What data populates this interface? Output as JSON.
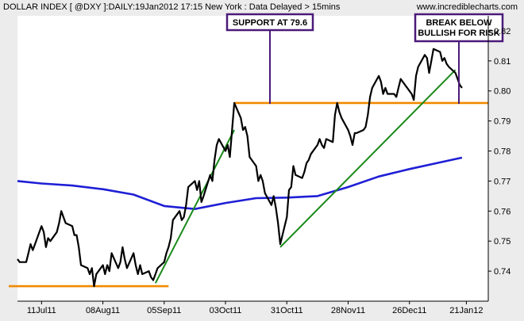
{
  "header": {
    "title": "DOLLAR INDEX [ @DXY ]:DAILY:19Jan2012 17:15 New York  : Data Delayed > 15mins",
    "site": "www.incrediblecharts.com"
  },
  "colors": {
    "background": "#ececec",
    "plot_background": "#ffffff",
    "price": "#000000",
    "moving_average": "#1f1fd6",
    "trendline": "#1a8a1a",
    "support": "#f08a00",
    "annotation_border": "#4b1a7a"
  },
  "annotations": [
    {
      "id": "support",
      "lines": [
        "SUPPORT AT 79.6"
      ]
    },
    {
      "id": "break",
      "lines": [
        "BREAK BELOW",
        "BULLISH FOR RISK"
      ]
    }
  ],
  "chart_data": {
    "type": "line",
    "title": "DOLLAR INDEX [ @DXY ]:DAILY:19Jan2012 17:15 New York  : Data Delayed > 15mins",
    "x_range": [
      "2011-06-30",
      "2012-01-31"
    ],
    "ylim": [
      0.73,
      0.825
    ],
    "y_axis_position": "right",
    "grid": false,
    "x_ticks": [
      {
        "date": "2011-07-11",
        "label": "11Jul11"
      },
      {
        "date": "2011-08-08",
        "label": "08Aug11"
      },
      {
        "date": "2011-09-05",
        "label": "05Sep11"
      },
      {
        "date": "2011-10-03",
        "label": "03Oct11"
      },
      {
        "date": "2011-10-31",
        "label": "31Oct11"
      },
      {
        "date": "2011-11-28",
        "label": "28Nov11"
      },
      {
        "date": "2011-12-26",
        "label": "26Dec11"
      },
      {
        "date": "2012-01-21",
        "label": "21Jan12"
      }
    ],
    "y_ticks": [
      0.74,
      0.75,
      0.76,
      0.77,
      0.78,
      0.79,
      0.8,
      0.81,
      0.82
    ],
    "series": [
      {
        "kind": "price",
        "points": [
          [
            "2011-06-30",
            0.744
          ],
          [
            "2011-07-01",
            0.743
          ],
          [
            "2011-07-04",
            0.743
          ],
          [
            "2011-07-05",
            0.746
          ],
          [
            "2011-07-06",
            0.749
          ],
          [
            "2011-07-07",
            0.747
          ],
          [
            "2011-07-08",
            0.749
          ],
          [
            "2011-07-11",
            0.755
          ],
          [
            "2011-07-12",
            0.753
          ],
          [
            "2011-07-13",
            0.748
          ],
          [
            "2011-07-14",
            0.751
          ],
          [
            "2011-07-15",
            0.75
          ],
          [
            "2011-07-18",
            0.753
          ],
          [
            "2011-07-19",
            0.756
          ],
          [
            "2011-07-20",
            0.76
          ],
          [
            "2011-07-21",
            0.758
          ],
          [
            "2011-07-22",
            0.756
          ],
          [
            "2011-07-25",
            0.755
          ],
          [
            "2011-07-26",
            0.752
          ],
          [
            "2011-07-27",
            0.752
          ],
          [
            "2011-07-28",
            0.748
          ],
          [
            "2011-07-29",
            0.742
          ],
          [
            "2011-08-01",
            0.741
          ],
          [
            "2011-08-02",
            0.739
          ],
          [
            "2011-08-03",
            0.741
          ],
          [
            "2011-08-04",
            0.735
          ],
          [
            "2011-08-05",
            0.739
          ],
          [
            "2011-08-08",
            0.742
          ],
          [
            "2011-08-09",
            0.739
          ],
          [
            "2011-08-10",
            0.742
          ],
          [
            "2011-08-11",
            0.74
          ],
          [
            "2011-08-12",
            0.746
          ],
          [
            "2011-08-15",
            0.741
          ],
          [
            "2011-08-16",
            0.743
          ],
          [
            "2011-08-17",
            0.748
          ],
          [
            "2011-08-18",
            0.744
          ],
          [
            "2011-08-19",
            0.741
          ],
          [
            "2011-08-22",
            0.746
          ],
          [
            "2011-08-23",
            0.742
          ],
          [
            "2011-08-24",
            0.739
          ],
          [
            "2011-08-25",
            0.742
          ],
          [
            "2011-08-26",
            0.739
          ],
          [
            "2011-08-29",
            0.74
          ],
          [
            "2011-08-30",
            0.738
          ],
          [
            "2011-08-31",
            0.737
          ],
          [
            "2011-09-01",
            0.739
          ],
          [
            "2011-09-02",
            0.741
          ],
          [
            "2011-09-05",
            0.743
          ],
          [
            "2011-09-06",
            0.746
          ],
          [
            "2011-09-07",
            0.748
          ],
          [
            "2011-09-08",
            0.751
          ],
          [
            "2011-09-09",
            0.757
          ],
          [
            "2011-09-12",
            0.76
          ],
          [
            "2011-09-13",
            0.757
          ],
          [
            "2011-09-14",
            0.758
          ],
          [
            "2011-09-15",
            0.762
          ],
          [
            "2011-09-16",
            0.768
          ],
          [
            "2011-09-19",
            0.77
          ],
          [
            "2011-09-20",
            0.767
          ],
          [
            "2011-09-21",
            0.77
          ],
          [
            "2011-09-22",
            0.763
          ],
          [
            "2011-09-23",
            0.765
          ],
          [
            "2011-09-26",
            0.772
          ],
          [
            "2011-09-27",
            0.77
          ],
          [
            "2011-09-28",
            0.777
          ],
          [
            "2011-09-29",
            0.782
          ],
          [
            "2011-09-30",
            0.784
          ],
          [
            "2011-10-03",
            0.78
          ],
          [
            "2011-10-04",
            0.782
          ],
          [
            "2011-10-05",
            0.778
          ],
          [
            "2011-10-06",
            0.787
          ],
          [
            "2011-10-07",
            0.796
          ],
          [
            "2011-10-10",
            0.791
          ],
          [
            "2011-10-11",
            0.787
          ],
          [
            "2011-10-12",
            0.788
          ],
          [
            "2011-10-13",
            0.785
          ],
          [
            "2011-10-14",
            0.778
          ],
          [
            "2011-10-17",
            0.775
          ],
          [
            "2011-10-18",
            0.77
          ],
          [
            "2011-10-19",
            0.772
          ],
          [
            "2011-10-20",
            0.77
          ],
          [
            "2011-10-21",
            0.766
          ],
          [
            "2011-10-24",
            0.762
          ],
          [
            "2011-10-25",
            0.765
          ],
          [
            "2011-10-26",
            0.761
          ],
          [
            "2011-10-27",
            0.756
          ],
          [
            "2011-10-28",
            0.749
          ],
          [
            "2011-10-31",
            0.758
          ],
          [
            "2011-11-01",
            0.767
          ],
          [
            "2011-11-02",
            0.768
          ],
          [
            "2011-11-03",
            0.775
          ],
          [
            "2011-11-04",
            0.772
          ],
          [
            "2011-11-07",
            0.771
          ],
          [
            "2011-11-08",
            0.773
          ],
          [
            "2011-11-09",
            0.776
          ],
          [
            "2011-11-10",
            0.777
          ],
          [
            "2011-11-11",
            0.779
          ],
          [
            "2011-11-14",
            0.782
          ],
          [
            "2011-11-15",
            0.784
          ],
          [
            "2011-11-16",
            0.782
          ],
          [
            "2011-11-17",
            0.781
          ],
          [
            "2011-11-18",
            0.784
          ],
          [
            "2011-11-21",
            0.783
          ],
          [
            "2011-11-22",
            0.792
          ],
          [
            "2011-11-23",
            0.796
          ],
          [
            "2011-11-24",
            0.793
          ],
          [
            "2011-11-25",
            0.791
          ],
          [
            "2011-11-28",
            0.787
          ],
          [
            "2011-11-29",
            0.785
          ],
          [
            "2011-11-30",
            0.782
          ],
          [
            "2011-12-01",
            0.786
          ],
          [
            "2011-12-02",
            0.786
          ],
          [
            "2011-12-05",
            0.787
          ],
          [
            "2011-12-06",
            0.788
          ],
          [
            "2011-12-07",
            0.792
          ],
          [
            "2011-12-08",
            0.798
          ],
          [
            "2011-12-09",
            0.801
          ],
          [
            "2011-12-12",
            0.805
          ],
          [
            "2011-12-13",
            0.803
          ],
          [
            "2011-12-14",
            0.799
          ],
          [
            "2011-12-15",
            0.801
          ],
          [
            "2011-12-16",
            0.799
          ],
          [
            "2011-12-19",
            0.799
          ],
          [
            "2011-12-20",
            0.798
          ],
          [
            "2011-12-21",
            0.801
          ],
          [
            "2011-12-22",
            0.804
          ],
          [
            "2011-12-23",
            0.803
          ],
          [
            "2011-12-26",
            0.8
          ],
          [
            "2011-12-27",
            0.799
          ],
          [
            "2011-12-28",
            0.797
          ],
          [
            "2011-12-29",
            0.805
          ],
          [
            "2011-12-30",
            0.808
          ],
          [
            "2012-01-02",
            0.812
          ],
          [
            "2012-01-03",
            0.811
          ],
          [
            "2012-01-04",
            0.806
          ],
          [
            "2012-01-05",
            0.81
          ],
          [
            "2012-01-06",
            0.814
          ],
          [
            "2012-01-09",
            0.813
          ],
          [
            "2012-01-10",
            0.81
          ],
          [
            "2012-01-11",
            0.811
          ],
          [
            "2012-01-12",
            0.809
          ],
          [
            "2012-01-13",
            0.808
          ],
          [
            "2012-01-16",
            0.806
          ],
          [
            "2012-01-17",
            0.804
          ],
          [
            "2012-01-18",
            0.802
          ],
          [
            "2012-01-19",
            0.801
          ]
        ]
      },
      {
        "kind": "moving_average",
        "points": [
          [
            "2011-06-30",
            0.77
          ],
          [
            "2011-07-11",
            0.7692
          ],
          [
            "2011-07-25",
            0.7685
          ],
          [
            "2011-08-08",
            0.7673
          ],
          [
            "2011-08-22",
            0.7655
          ],
          [
            "2011-09-05",
            0.7617
          ],
          [
            "2011-09-19",
            0.7607
          ],
          [
            "2011-10-03",
            0.7627
          ],
          [
            "2011-10-17",
            0.7643
          ],
          [
            "2011-10-31",
            0.7645
          ],
          [
            "2011-11-14",
            0.765
          ],
          [
            "2011-11-28",
            0.768
          ],
          [
            "2011-12-12",
            0.7715
          ],
          [
            "2011-12-26",
            0.774
          ],
          [
            "2012-01-09",
            0.7762
          ],
          [
            "2012-01-19",
            0.7778
          ]
        ]
      },
      {
        "kind": "trendline",
        "points": [
          [
            "2011-09-01",
            0.736
          ],
          [
            "2011-10-07",
            0.787
          ]
        ]
      },
      {
        "kind": "trendline",
        "points": [
          [
            "2011-10-28",
            0.748
          ],
          [
            "2012-01-16",
            0.807
          ]
        ]
      },
      {
        "kind": "support",
        "points": [
          [
            "2011-06-26",
            0.735
          ],
          [
            "2011-09-07",
            0.735
          ]
        ]
      },
      {
        "kind": "support",
        "points": [
          [
            "2011-10-07",
            0.796
          ],
          [
            "2012-01-31",
            0.796
          ]
        ]
      }
    ]
  }
}
